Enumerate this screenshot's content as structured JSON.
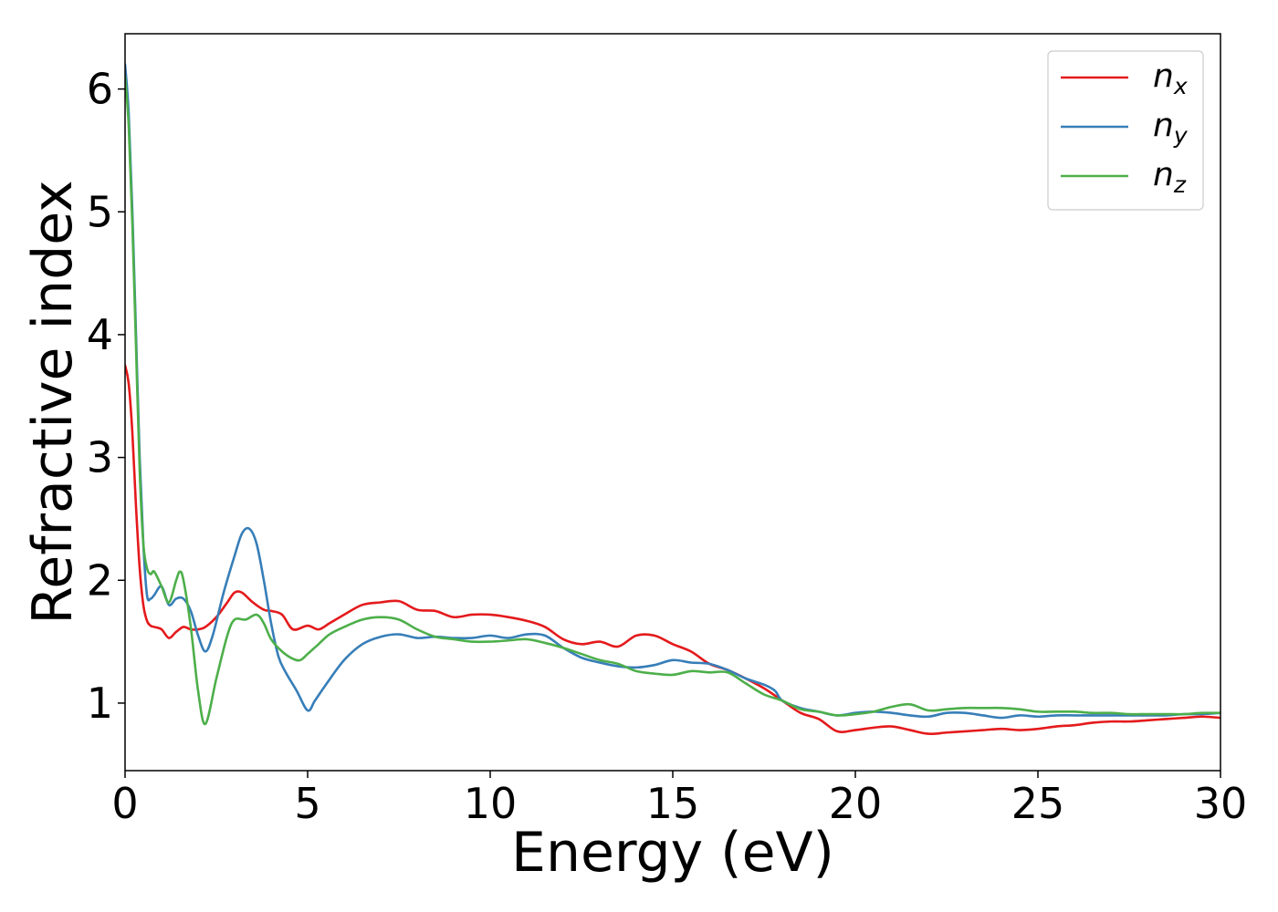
{
  "chart_data": {
    "type": "line",
    "xlabel": "Energy (eV)",
    "ylabel": "Refractive index",
    "xlim": [
      0,
      30
    ],
    "ylim": [
      0.45,
      6.45
    ],
    "x_ticks": [
      0,
      5,
      10,
      15,
      20,
      25,
      30
    ],
    "y_ticks": [
      1,
      2,
      3,
      4,
      5,
      6
    ],
    "x_tick_labels": [
      "0",
      "5",
      "10",
      "15",
      "20",
      "25",
      "30"
    ],
    "y_tick_labels": [
      "1",
      "2",
      "3",
      "4",
      "5",
      "6"
    ],
    "grid": false,
    "legend_position": "top-right",
    "series": [
      {
        "name": "n_x",
        "label_base": "n",
        "label_sub": "x",
        "color": "#e41a1c",
        "x": [
          0,
          0.1,
          0.2,
          0.3,
          0.4,
          0.5,
          0.6,
          0.7,
          0.8,
          1.0,
          1.2,
          1.4,
          1.6,
          1.8,
          2.0,
          2.2,
          2.5,
          2.8,
          3.0,
          3.2,
          3.5,
          3.8,
          4.0,
          4.3,
          4.6,
          5.0,
          5.3,
          5.6,
          6.0,
          6.5,
          7.0,
          7.5,
          8.0,
          8.5,
          9.0,
          9.5,
          10.0,
          10.5,
          11.0,
          11.5,
          12.0,
          12.5,
          13.0,
          13.5,
          14.0,
          14.5,
          15.0,
          15.5,
          16.0,
          16.5,
          17.0,
          17.5,
          18.0,
          18.5,
          19.0,
          19.5,
          20.0,
          20.5,
          21.0,
          21.5,
          22.0,
          22.5,
          23.0,
          23.5,
          24.0,
          24.5,
          25.0,
          25.5,
          26.0,
          26.5,
          27.0,
          27.5,
          28.0,
          28.5,
          29.0,
          29.5,
          30.0
        ],
        "y": [
          3.75,
          3.6,
          3.2,
          2.6,
          2.1,
          1.8,
          1.67,
          1.63,
          1.62,
          1.6,
          1.53,
          1.58,
          1.62,
          1.6,
          1.6,
          1.62,
          1.7,
          1.82,
          1.9,
          1.9,
          1.82,
          1.76,
          1.75,
          1.72,
          1.6,
          1.63,
          1.6,
          1.65,
          1.72,
          1.8,
          1.82,
          1.83,
          1.76,
          1.75,
          1.7,
          1.72,
          1.72,
          1.7,
          1.67,
          1.62,
          1.52,
          1.48,
          1.5,
          1.46,
          1.55,
          1.55,
          1.48,
          1.42,
          1.32,
          1.27,
          1.2,
          1.12,
          1.02,
          0.92,
          0.87,
          0.77,
          0.78,
          0.8,
          0.81,
          0.78,
          0.75,
          0.76,
          0.77,
          0.78,
          0.79,
          0.78,
          0.79,
          0.81,
          0.82,
          0.84,
          0.85,
          0.85,
          0.86,
          0.87,
          0.88,
          0.89,
          0.88
        ]
      },
      {
        "name": "n_y",
        "label_base": "n",
        "label_sub": "y",
        "color": "#377eb8",
        "x": [
          0,
          0.1,
          0.2,
          0.3,
          0.4,
          0.5,
          0.6,
          0.7,
          0.8,
          1.0,
          1.2,
          1.4,
          1.6,
          1.8,
          2.0,
          2.2,
          2.4,
          2.7,
          3.0,
          3.2,
          3.4,
          3.6,
          3.8,
          4.0,
          4.2,
          4.4,
          4.7,
          5.0,
          5.2,
          5.5,
          6.0,
          6.5,
          7.0,
          7.5,
          8.0,
          8.5,
          9.0,
          9.5,
          10.0,
          10.5,
          11.0,
          11.5,
          12.0,
          12.5,
          13.0,
          13.5,
          14.0,
          14.5,
          15.0,
          15.5,
          16.0,
          16.5,
          17.0,
          17.5,
          17.8,
          18.0,
          18.5,
          19.0,
          19.5,
          20.0,
          20.5,
          21.0,
          21.5,
          22.0,
          22.5,
          23.0,
          23.5,
          24.0,
          24.5,
          25.0,
          25.5,
          26.0,
          26.5,
          27.0,
          27.5,
          28.0,
          28.5,
          29.0,
          29.5,
          30.0
        ],
        "y": [
          6.2,
          5.8,
          5.0,
          4.0,
          3.0,
          2.3,
          1.88,
          1.85,
          1.88,
          1.95,
          1.8,
          1.85,
          1.85,
          1.75,
          1.55,
          1.42,
          1.55,
          1.9,
          2.2,
          2.38,
          2.42,
          2.3,
          2.0,
          1.65,
          1.38,
          1.25,
          1.1,
          0.94,
          1.02,
          1.15,
          1.35,
          1.48,
          1.54,
          1.56,
          1.53,
          1.54,
          1.53,
          1.53,
          1.55,
          1.53,
          1.56,
          1.55,
          1.45,
          1.37,
          1.33,
          1.3,
          1.29,
          1.31,
          1.35,
          1.33,
          1.32,
          1.27,
          1.2,
          1.15,
          1.1,
          1.02,
          0.96,
          0.93,
          0.9,
          0.92,
          0.93,
          0.92,
          0.9,
          0.89,
          0.92,
          0.92,
          0.9,
          0.88,
          0.9,
          0.89,
          0.9,
          0.9,
          0.9,
          0.9,
          0.9,
          0.9,
          0.9,
          0.91,
          0.91,
          0.92
        ]
      },
      {
        "name": "n_z",
        "label_base": "n",
        "label_sub": "z",
        "color": "#4daf4a",
        "x": [
          0,
          0.1,
          0.2,
          0.3,
          0.4,
          0.5,
          0.6,
          0.7,
          0.8,
          1.0,
          1.2,
          1.4,
          1.5,
          1.6,
          1.8,
          2.0,
          2.2,
          2.5,
          2.8,
          3.0,
          3.3,
          3.6,
          3.8,
          4.0,
          4.3,
          4.6,
          4.8,
          5.0,
          5.3,
          5.6,
          6.0,
          6.5,
          7.0,
          7.5,
          8.0,
          8.5,
          9.0,
          9.5,
          10.0,
          10.5,
          11.0,
          11.5,
          12.0,
          12.5,
          13.0,
          13.5,
          14.0,
          14.5,
          15.0,
          15.5,
          16.0,
          16.5,
          17.0,
          17.5,
          18.0,
          18.5,
          19.0,
          19.5,
          20.0,
          20.5,
          21.0,
          21.5,
          22.0,
          22.5,
          23.0,
          23.5,
          24.0,
          24.5,
          25.0,
          25.5,
          26.0,
          26.5,
          27.0,
          27.5,
          28.0,
          28.5,
          29.0,
          29.5,
          30.0
        ],
        "y": [
          6.1,
          5.7,
          4.9,
          3.9,
          2.9,
          2.3,
          2.1,
          2.05,
          2.07,
          1.95,
          1.82,
          2.0,
          2.07,
          2.0,
          1.62,
          1.1,
          0.83,
          1.2,
          1.55,
          1.68,
          1.68,
          1.72,
          1.65,
          1.52,
          1.42,
          1.36,
          1.35,
          1.4,
          1.48,
          1.56,
          1.62,
          1.68,
          1.7,
          1.68,
          1.6,
          1.54,
          1.52,
          1.5,
          1.5,
          1.51,
          1.52,
          1.49,
          1.45,
          1.4,
          1.35,
          1.32,
          1.26,
          1.24,
          1.23,
          1.26,
          1.25,
          1.25,
          1.16,
          1.07,
          1.02,
          0.95,
          0.93,
          0.9,
          0.91,
          0.93,
          0.97,
          0.99,
          0.94,
          0.95,
          0.96,
          0.96,
          0.96,
          0.95,
          0.93,
          0.93,
          0.93,
          0.92,
          0.92,
          0.91,
          0.91,
          0.91,
          0.91,
          0.92,
          0.92
        ]
      }
    ]
  }
}
